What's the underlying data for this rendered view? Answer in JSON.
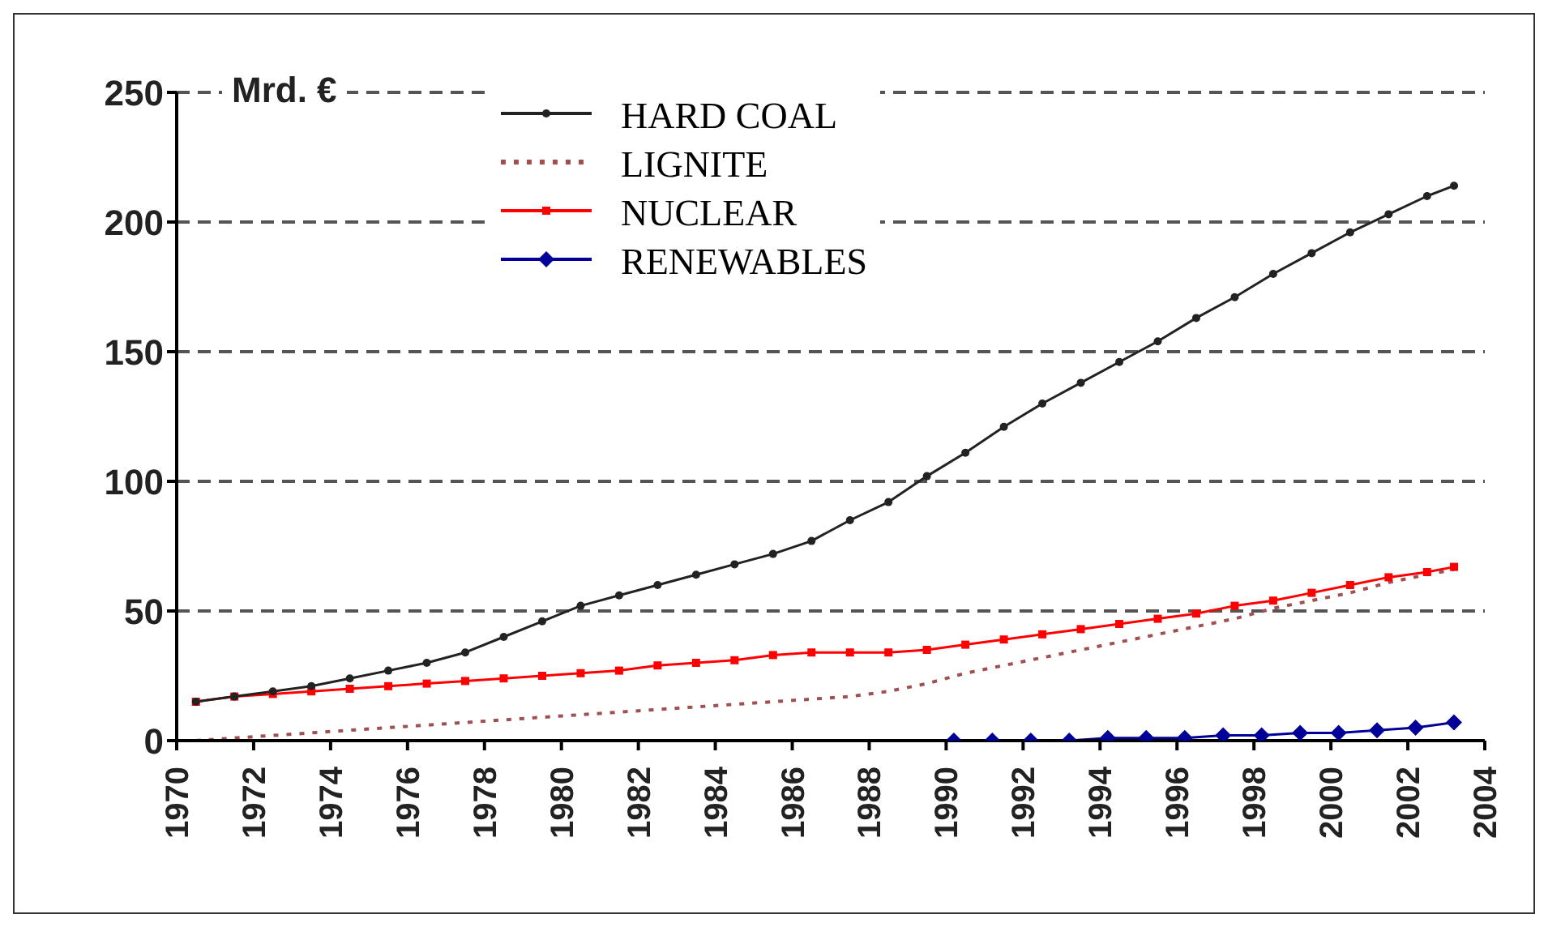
{
  "chart_data": {
    "type": "line",
    "ylabel": "Mrd. €",
    "xlim": [
      1970,
      2004
    ],
    "xticks": [
      1970,
      1972,
      1974,
      1976,
      1978,
      1980,
      1982,
      1984,
      1986,
      1988,
      1990,
      1992,
      1994,
      1996,
      1998,
      2000,
      2002,
      2004
    ],
    "ylim": [
      0,
      250
    ],
    "yticks": [
      0,
      50,
      100,
      150,
      200,
      250
    ],
    "grid": "y",
    "legend": "top",
    "series": [
      {
        "name": "HARD COAL",
        "color": "#222222",
        "marker": "circle",
        "line_style": "solid",
        "x": [
          1970.5,
          1971.5,
          1972.5,
          1973.5,
          1974.5,
          1975.5,
          1976.5,
          1977.5,
          1978.5,
          1979.5,
          1980.5,
          1981.5,
          1982.5,
          1983.5,
          1984.5,
          1985.5,
          1986.5,
          1987.5,
          1988.5,
          1989.5,
          1990.5,
          1991.5,
          1992.5,
          1993.5,
          1994.5,
          1995.5,
          1996.5,
          1997.5,
          1998.5,
          1999.5,
          2000.5,
          2001.5,
          2002.5,
          2003.2
        ],
        "values": [
          15,
          17,
          19,
          21,
          24,
          27,
          30,
          34,
          40,
          46,
          52,
          56,
          60,
          64,
          68,
          72,
          77,
          85,
          92,
          102,
          111,
          121,
          130,
          138,
          146,
          154,
          163,
          171,
          180,
          188,
          196,
          203,
          210,
          214
        ]
      },
      {
        "name": "LIGNITE",
        "color": "#a05050",
        "marker": "none",
        "line_style": "dotted",
        "x": [
          1970.5,
          1971.5,
          1972.5,
          1973.5,
          1974.5,
          1975.5,
          1976.5,
          1977.5,
          1978.5,
          1979.5,
          1980.5,
          1981.5,
          1982.5,
          1983.5,
          1984.5,
          1985.5,
          1986.5,
          1987.5,
          1988.5,
          1989.5,
          1990.5,
          1991.5,
          1992.5,
          1993.5,
          1994.5,
          1995.5,
          1996.5,
          1997.5,
          1998.5,
          1999.5,
          2000.5,
          2001.5,
          2002.5,
          2003.2
        ],
        "values": [
          0,
          1,
          2,
          3,
          4,
          5,
          6,
          7,
          8,
          9,
          10,
          11,
          12,
          13,
          14,
          15,
          16,
          17,
          19,
          22,
          26,
          29,
          32,
          35,
          38,
          41,
          44,
          47,
          51,
          54,
          57,
          61,
          64,
          66
        ]
      },
      {
        "name": "NUCLEAR",
        "color": "#ff0000",
        "marker": "square",
        "line_style": "solid",
        "x": [
          1970.5,
          1971.5,
          1972.5,
          1973.5,
          1974.5,
          1975.5,
          1976.5,
          1977.5,
          1978.5,
          1979.5,
          1980.5,
          1981.5,
          1982.5,
          1983.5,
          1984.5,
          1985.5,
          1986.5,
          1987.5,
          1988.5,
          1989.5,
          1990.5,
          1991.5,
          1992.5,
          1993.5,
          1994.5,
          1995.5,
          1996.5,
          1997.5,
          1998.5,
          1999.5,
          2000.5,
          2001.5,
          2002.5,
          2003.2
        ],
        "values": [
          15,
          17,
          18,
          19,
          20,
          21,
          22,
          23,
          24,
          25,
          26,
          27,
          29,
          30,
          31,
          33,
          34,
          34,
          34,
          35,
          37,
          39,
          41,
          43,
          45,
          47,
          49,
          52,
          54,
          57,
          60,
          63,
          65,
          67
        ]
      },
      {
        "name": "RENEWABLES",
        "color": "#000099",
        "marker": "diamond",
        "line_style": "solid",
        "x": [
          1990.2,
          1991.2,
          1992.2,
          1993.2,
          1994.2,
          1995.2,
          1996.2,
          1997.2,
          1998.2,
          1999.2,
          2000.2,
          2001.2,
          2002.2,
          2003.2
        ],
        "values": [
          0,
          0,
          0,
          0,
          1,
          1,
          1,
          2,
          2,
          3,
          3,
          4,
          5,
          7
        ]
      }
    ]
  }
}
